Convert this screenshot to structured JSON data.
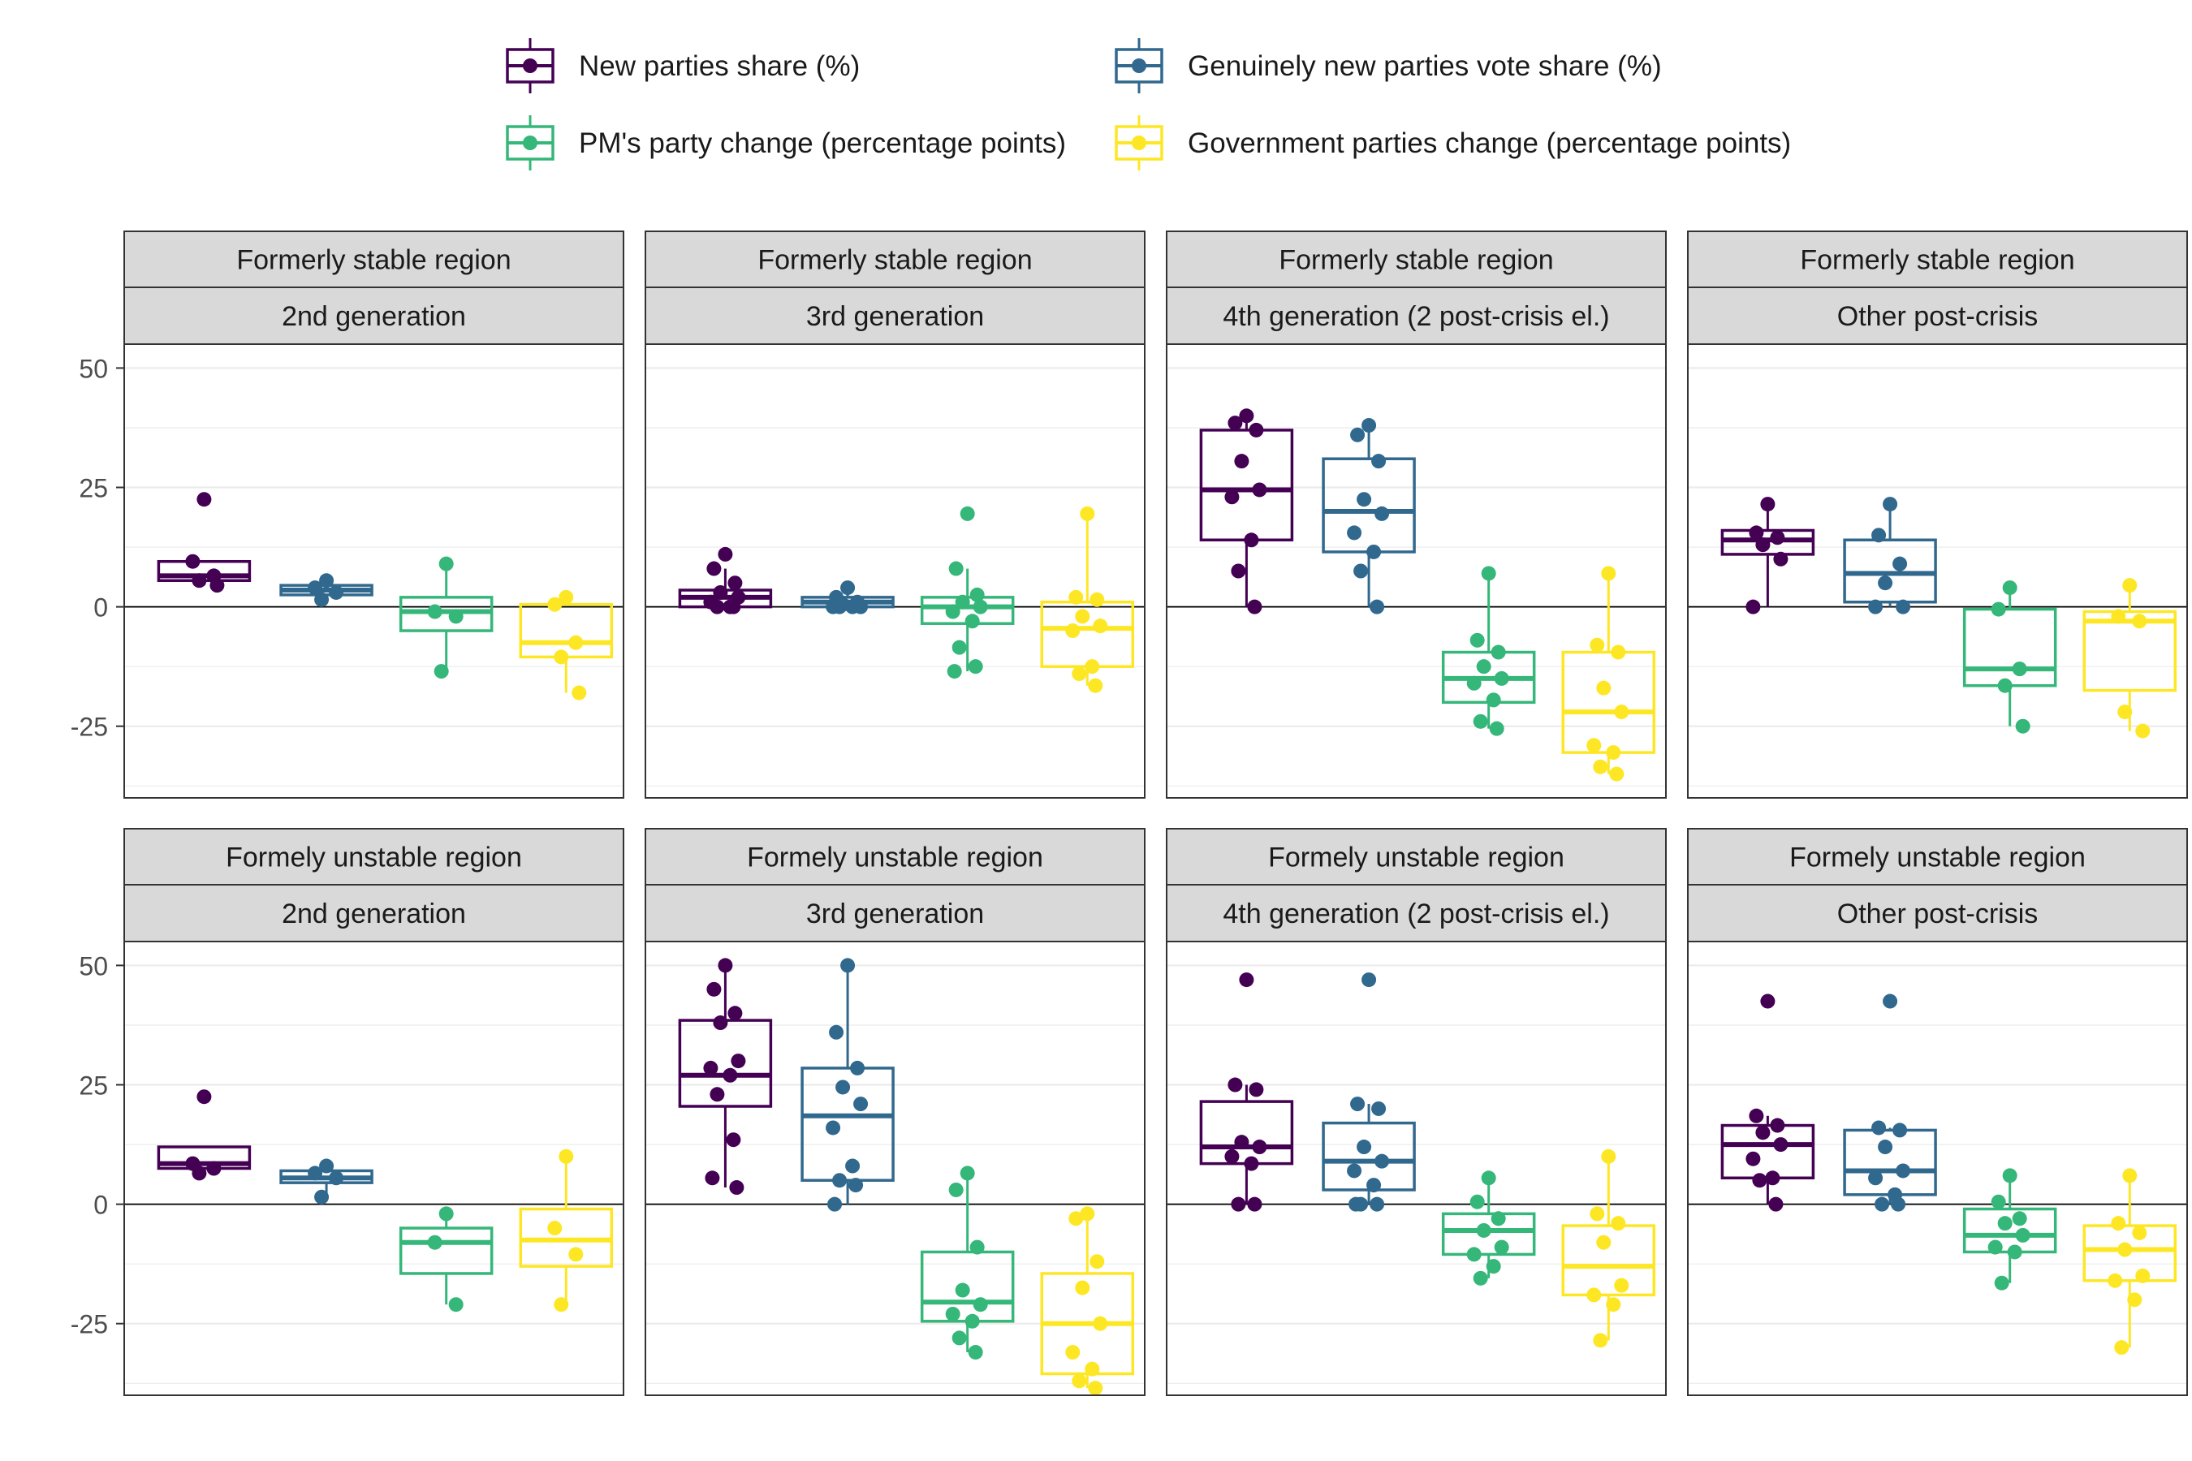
{
  "chart_data": {
    "type": "boxplot",
    "title": "",
    "xlabel": "",
    "ylabel": "",
    "ylim": [
      -40,
      55
    ],
    "y_ticks": [
      -25,
      0,
      25,
      50
    ],
    "grid": true,
    "reference_line": 0,
    "legend_position": "top",
    "series": [
      {
        "name": "New parties share (%)",
        "color": "#440154"
      },
      {
        "name": "Genuinely new parties vote share (%)",
        "color": "#31688e"
      },
      {
        "name": "PM's party change (percentage points)",
        "color": "#35b779"
      },
      {
        "name": "Government parties change (percentage points)",
        "color": "#fde725"
      }
    ],
    "panels": [
      {
        "row_label": "Formerly stable region",
        "col_label": "2nd generation",
        "boxes": [
          {
            "q1": 5.5,
            "median": 6.5,
            "q3": 9.5,
            "whisker_low": 4.5,
            "whisker_high": 9.5,
            "points": [
              22.5,
              9.5,
              6.5,
              5.5,
              4.5
            ]
          },
          {
            "q1": 2.5,
            "median": 3.5,
            "q3": 4.5,
            "whisker_low": 1.5,
            "whisker_high": 5.5,
            "points": [
              5.5,
              4,
              3,
              1.5
            ]
          },
          {
            "q1": -5,
            "median": -1,
            "q3": 2,
            "whisker_low": -13.5,
            "whisker_high": 9,
            "points": [
              9,
              -1,
              -2,
              -13.5
            ]
          },
          {
            "q1": -10.5,
            "median": -7.5,
            "q3": 0.5,
            "whisker_low": -18,
            "whisker_high": 2,
            "points": [
              2,
              0.5,
              -7.5,
              -10.5,
              -18
            ]
          }
        ]
      },
      {
        "row_label": "Formerly stable region",
        "col_label": "3rd generation",
        "boxes": [
          {
            "q1": 0,
            "median": 2,
            "q3": 3.5,
            "whisker_low": 0,
            "whisker_high": 8,
            "points": [
              11,
              8,
              5,
              3,
              2,
              1,
              0,
              0,
              0
            ]
          },
          {
            "q1": 0,
            "median": 1,
            "q3": 2,
            "whisker_low": 0,
            "whisker_high": 4,
            "points": [
              4,
              2,
              1,
              0.5,
              0,
              0,
              0,
              0
            ]
          },
          {
            "q1": -3.5,
            "median": 0,
            "q3": 2,
            "whisker_low": -13.5,
            "whisker_high": 8,
            "points": [
              19.5,
              8,
              2.5,
              1,
              0,
              -1,
              -3,
              -8.5,
              -12.5,
              -13.5
            ]
          },
          {
            "q1": -12.5,
            "median": -4.5,
            "q3": 1,
            "whisker_low": -16.5,
            "whisker_high": 19.5,
            "points": [
              19.5,
              2,
              1.5,
              -2,
              -4,
              -5,
              -12.5,
              -14,
              -16.5
            ]
          }
        ]
      },
      {
        "row_label": "Formerly stable region",
        "col_label": "4th generation (2 post-crisis el.)",
        "boxes": [
          {
            "q1": 14,
            "median": 24.5,
            "q3": 37,
            "whisker_low": 0,
            "whisker_high": 40,
            "points": [
              40,
              38.5,
              37,
              30.5,
              24.5,
              23,
              14,
              7.5,
              0
            ]
          },
          {
            "q1": 11.5,
            "median": 20,
            "q3": 31,
            "whisker_low": 0,
            "whisker_high": 38,
            "points": [
              38,
              36,
              30.5,
              22.5,
              19.5,
              15.5,
              11.5,
              7.5,
              0
            ]
          },
          {
            "q1": -20,
            "median": -15,
            "q3": -9.5,
            "whisker_low": -25.5,
            "whisker_high": 7,
            "points": [
              7,
              -7,
              -9.5,
              -12.5,
              -15,
              -16,
              -19.5,
              -24,
              -25.5
            ]
          },
          {
            "q1": -30.5,
            "median": -22,
            "q3": -9.5,
            "whisker_low": -35,
            "whisker_high": 7,
            "points": [
              7,
              -8,
              -9.5,
              -17,
              -22,
              -29,
              -30.5,
              -33.5,
              -35
            ]
          }
        ]
      },
      {
        "row_label": "Formerly stable region",
        "col_label": "Other post-crisis",
        "boxes": [
          {
            "q1": 11,
            "median": 14,
            "q3": 16,
            "whisker_low": 0,
            "whisker_high": 21.5,
            "points": [
              21.5,
              15.5,
              14.5,
              13,
              10,
              0
            ]
          },
          {
            "q1": 1,
            "median": 7,
            "q3": 14,
            "whisker_low": 0,
            "whisker_high": 21.5,
            "points": [
              21.5,
              15,
              9,
              5,
              0,
              0
            ]
          },
          {
            "q1": -16.5,
            "median": -13,
            "q3": -0.5,
            "whisker_low": -25,
            "whisker_high": 4,
            "points": [
              4,
              -0.5,
              -13,
              -16.5,
              -25
            ]
          },
          {
            "q1": -17.5,
            "median": -3,
            "q3": -1,
            "whisker_low": -26,
            "whisker_high": 4.5,
            "points": [
              4.5,
              -2,
              -3,
              -22,
              -26
            ]
          }
        ]
      },
      {
        "row_label": "Formely unstable region",
        "col_label": "2nd generation",
        "boxes": [
          {
            "q1": 7.5,
            "median": 8.5,
            "q3": 12,
            "whisker_low": 6.5,
            "whisker_high": 12,
            "points": [
              22.5,
              8.5,
              7.5,
              6.5
            ]
          },
          {
            "q1": 4.5,
            "median": 5.5,
            "q3": 7,
            "whisker_low": 1.5,
            "whisker_high": 8,
            "points": [
              8,
              6.5,
              5.5,
              1.5
            ]
          },
          {
            "q1": -14.5,
            "median": -8,
            "q3": -5,
            "whisker_low": -21,
            "whisker_high": -2,
            "points": [
              -2,
              -8,
              -21
            ]
          },
          {
            "q1": -13,
            "median": -7.5,
            "q3": -1,
            "whisker_low": -21,
            "whisker_high": 10,
            "points": [
              10,
              -5,
              -10.5,
              -21
            ]
          }
        ]
      },
      {
        "row_label": "Formely unstable region",
        "col_label": "3rd generation",
        "boxes": [
          {
            "q1": 20.5,
            "median": 27,
            "q3": 38.5,
            "whisker_low": 3.5,
            "whisker_high": 50,
            "points": [
              50,
              45,
              40,
              38,
              30,
              28.5,
              27,
              23,
              13.5,
              5.5,
              3.5
            ]
          },
          {
            "q1": 5,
            "median": 18.5,
            "q3": 28.5,
            "whisker_low": 0,
            "whisker_high": 50,
            "points": [
              50,
              36,
              28.5,
              24.5,
              21,
              16,
              8,
              5,
              4,
              0
            ]
          },
          {
            "q1": -24.5,
            "median": -20.5,
            "q3": -10,
            "whisker_low": -31,
            "whisker_high": 6.5,
            "points": [
              6.5,
              3,
              -9,
              -18,
              -21,
              -23,
              -24.5,
              -28,
              -31
            ]
          },
          {
            "q1": -35.5,
            "median": -25,
            "q3": -14.5,
            "whisker_low": -38.5,
            "whisker_high": -2,
            "points": [
              -2,
              -3,
              -12,
              -17.5,
              -25,
              -31,
              -34.5,
              -37,
              -38.5
            ]
          }
        ]
      },
      {
        "row_label": "Formely unstable region",
        "col_label": "4th generation (2 post-crisis el.)",
        "boxes": [
          {
            "q1": 8.5,
            "median": 12,
            "q3": 21.5,
            "whisker_low": 0,
            "whisker_high": 25,
            "points": [
              47,
              25,
              24,
              13,
              12,
              10,
              8.5,
              0,
              0
            ]
          },
          {
            "q1": 3,
            "median": 9,
            "q3": 17,
            "whisker_low": 0,
            "whisker_high": 21,
            "points": [
              47,
              21,
              20,
              12,
              9,
              7,
              4,
              0,
              0,
              0
            ]
          },
          {
            "q1": -10.5,
            "median": -5.5,
            "q3": -2,
            "whisker_low": -15.5,
            "whisker_high": 5.5,
            "points": [
              5.5,
              0.5,
              -3,
              -5.5,
              -9,
              -10.5,
              -13,
              -15.5
            ]
          },
          {
            "q1": -19,
            "median": -13,
            "q3": -4.5,
            "whisker_low": -28.5,
            "whisker_high": 10,
            "points": [
              10,
              -2,
              -4,
              -8,
              -17,
              -19,
              -21,
              -28.5
            ]
          }
        ]
      },
      {
        "row_label": "Formely unstable region",
        "col_label": "Other post-crisis",
        "boxes": [
          {
            "q1": 5.5,
            "median": 12.5,
            "q3": 16.5,
            "whisker_low": 0,
            "whisker_high": 18.5,
            "points": [
              42.5,
              18.5,
              16.5,
              15,
              12.5,
              9.5,
              5.5,
              5,
              0
            ]
          },
          {
            "q1": 2,
            "median": 7,
            "q3": 15.5,
            "whisker_low": 0,
            "whisker_high": 16,
            "points": [
              42.5,
              16,
              15.5,
              12,
              7,
              5.5,
              2,
              0,
              0
            ]
          },
          {
            "q1": -10,
            "median": -6.5,
            "q3": -1,
            "whisker_low": -16.5,
            "whisker_high": 6,
            "points": [
              6,
              0.5,
              -3,
              -4,
              -6.5,
              -9,
              -10,
              -16.5
            ]
          },
          {
            "q1": -16,
            "median": -9.5,
            "q3": -4.5,
            "whisker_low": -30,
            "whisker_high": 6,
            "points": [
              6,
              -4,
              -6,
              -9.5,
              -15,
              -16,
              -20,
              -30
            ]
          }
        ]
      }
    ]
  }
}
